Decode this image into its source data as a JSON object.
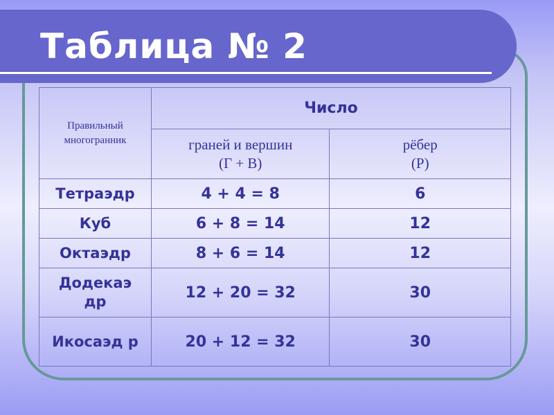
{
  "slide": {
    "title": "Таблица № 2"
  },
  "table": {
    "header": {
      "polyhedron": "Правильный многогранник",
      "number": "Число",
      "faces_vertices": "граней и вершин",
      "faces_vertices_formula": "(Г + В)",
      "edges": "рёбер",
      "edges_formula": "(Р)"
    },
    "rows": [
      {
        "name": "Тетраэдр",
        "sum": "4 + 4 = 8",
        "edges": "6"
      },
      {
        "name": "Куб",
        "sum": "6 + 8 = 14",
        "edges": "12"
      },
      {
        "name": "Октаэдр",
        "sum": "8 + 6 = 14",
        "edges": "12"
      },
      {
        "name": "Додекаэ др",
        "sum": "12 + 20 = 32",
        "edges": "30"
      },
      {
        "name": "Икосаэд р",
        "sum": "20 + 12 = 32",
        "edges": "30"
      }
    ]
  },
  "colors": {
    "title_bar": "#6666cc",
    "frame": "#669999",
    "text": "#333399"
  }
}
